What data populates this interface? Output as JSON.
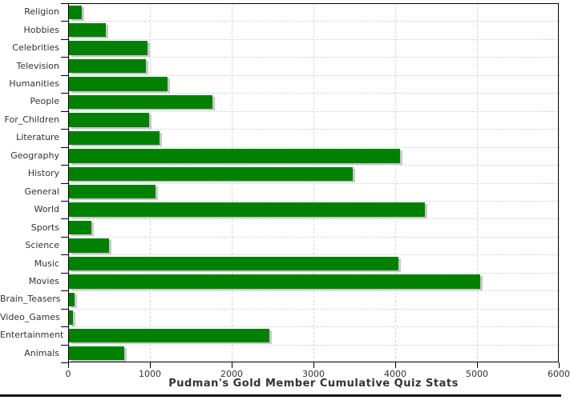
{
  "chart_data": {
    "type": "bar",
    "orientation": "horizontal",
    "title": "Pudman's Gold Member Cumulative Quiz Stats",
    "categories": [
      "Religion",
      "Hobbies",
      "Celebrities",
      "Television",
      "Humanities",
      "People",
      "For_Children",
      "Literature",
      "Geography",
      "History",
      "General",
      "World",
      "Sports",
      "Science",
      "Music",
      "Movies",
      "Brain_Teasers",
      "Video_Games",
      "Entertainment",
      "Animals"
    ],
    "values": [
      170,
      460,
      970,
      950,
      1220,
      1760,
      990,
      1120,
      4060,
      3480,
      1070,
      4360,
      280,
      500,
      4040,
      5040,
      80,
      60,
      2460,
      690
    ],
    "xlim": [
      0,
      6000
    ],
    "x_ticks": [
      0,
      1000,
      2000,
      3000,
      4000,
      5000,
      6000
    ],
    "xlabel": "",
    "ylabel": "",
    "grid": true,
    "legend": "none",
    "bar_color": "#008000",
    "bar_shadow_color": "#c9c9c9",
    "gridline_color": "#d6d6d6",
    "frame_color": "#000000",
    "label_color": "#333333"
  }
}
